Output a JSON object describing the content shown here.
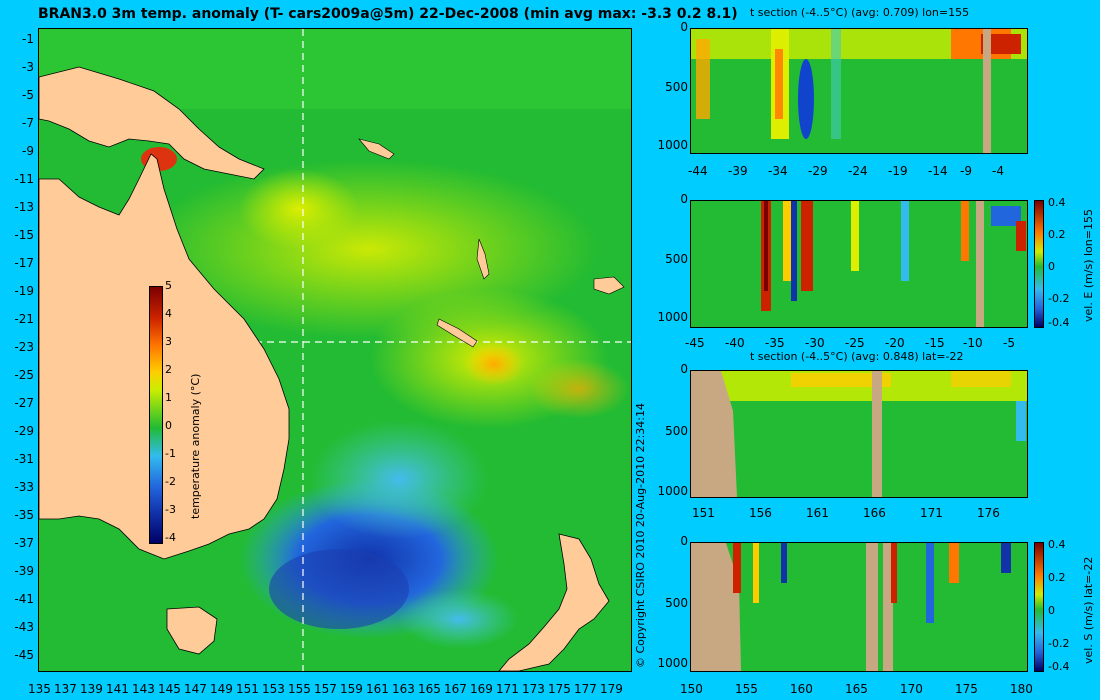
{
  "main_title": "BRAN3.0 3m temp. anomaly (T- cars2009a@5m) 22-Dec-2008 (min avg max: -3.3 0.2 8.1)",
  "map": {
    "lat_labels": [
      "-1",
      "-3",
      "-5",
      "-7",
      "-9",
      "-11",
      "-13",
      "-15",
      "-17",
      "-19",
      "-21",
      "-23",
      "-25",
      "-27",
      "-29",
      "-31",
      "-33",
      "-35",
      "-37",
      "-39",
      "-41",
      "-43",
      "-45"
    ],
    "lon_labels": [
      "135",
      "137",
      "139",
      "141",
      "143",
      "145",
      "147",
      "149",
      "151",
      "153",
      "155",
      "157",
      "159",
      "161",
      "163",
      "165",
      "167",
      "169",
      "171",
      "173",
      "175",
      "177",
      "179"
    ],
    "colorbar": {
      "label": "temperature anomaly (°C)",
      "ticks": [
        "5",
        "4",
        "3",
        "2",
        "1",
        "0",
        "-1",
        "-2",
        "-3",
        "-4"
      ]
    },
    "copyright": "© Copyright CSIRO 2010   20-Aug-2010 22:34:14"
  },
  "panels": {
    "p1": {
      "title": "t section (-4..5°C) (avg: 0.709) lon=155",
      "y_ticks": [
        "0",
        "500",
        "1000"
      ],
      "x_ticks": [
        "-44",
        "-39",
        "-34",
        "-29",
        "-24",
        "-19",
        "-14",
        "-9",
        "-4"
      ]
    },
    "p2": {
      "title": "",
      "y_ticks": [
        "0",
        "500",
        "1000"
      ],
      "x_ticks": [
        "-45",
        "-40",
        "-35",
        "-30",
        "-25",
        "-20",
        "-15",
        "-10",
        "-5"
      ],
      "cb_label": "vel. E (m/s) lon=155",
      "cb_ticks": [
        "0.4",
        "0.2",
        "0",
        "-0.2",
        "-0.4"
      ]
    },
    "p3": {
      "title": "t section (-4..5°C) (avg: 0.848) lat=-22",
      "y_ticks": [
        "0",
        "500",
        "1000"
      ],
      "x_ticks": [
        "151",
        "156",
        "161",
        "166",
        "171",
        "176"
      ]
    },
    "p4": {
      "title": "",
      "y_ticks": [
        "0",
        "500",
        "1000"
      ],
      "x_ticks": [
        "150",
        "155",
        "160",
        "165",
        "170",
        "175",
        "180"
      ],
      "cb_label": "vel. S (m/s) lat=-22",
      "cb_ticks": [
        "0.4",
        "0.2",
        "0",
        "-0.2",
        "-0.4"
      ]
    }
  },
  "colors": {
    "background": "#00ccff",
    "land": "#ffcc99",
    "section_land": "#c8a882",
    "ocean_base": "#22bb33"
  }
}
